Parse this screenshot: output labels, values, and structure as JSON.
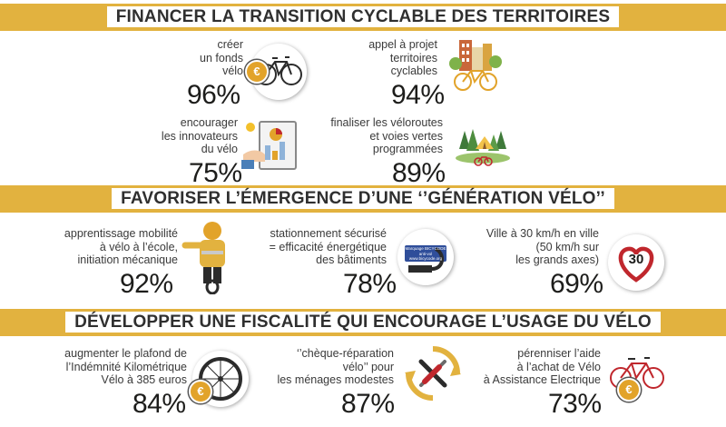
{
  "sections": [
    {
      "title": "FINANCER LA TRANSITION CYCLABLE DES TERRITOIRES",
      "items": [
        {
          "label": "créer\nun fonds\nvélo",
          "pct": "96%",
          "icon": "bicycle-euro-icon"
        },
        {
          "label": "appel à projet\nterritoires\ncyclables",
          "pct": "94%",
          "icon": "city-bicycle-icon"
        },
        {
          "label": "encourager\nles innovateurs\ndu vélo",
          "pct": "75%",
          "icon": "innovation-tablet-icon"
        },
        {
          "label": "finaliser les véloroutes\net voies vertes\nprogrammées",
          "pct": "89%",
          "icon": "greenway-tent-icon"
        }
      ]
    },
    {
      "title": "FAVORISER L’ÉMERGENCE D’UNE ‘’GÉNÉRATION VÉLO’’",
      "items": [
        {
          "label": "apprentissage mobilité\nà vélo à l’école,\ninitiation mécanique",
          "pct": "92%",
          "icon": "child-cyclist-icon"
        },
        {
          "label": "stationnement sécurisé\n= efficacité énergétique\ndes bâtiments",
          "pct": "78%",
          "icon": "bike-lock-icon"
        },
        {
          "label": "Ville à 30 km/h en ville\n(50 km/h sur\nles grands axes)",
          "pct": "69%",
          "icon": "speed-30-heart-icon"
        }
      ]
    },
    {
      "title": "DÉVELOPPER UNE FISCALITÉ QUI ENCOURAGE L’USAGE DU VÉLO",
      "items": [
        {
          "label": "augmenter le plafond de\nl’Indémnité Kilométrique\nVélo à 385 euros",
          "pct": "84%",
          "icon": "wheel-euro-icon"
        },
        {
          "label": "‘’chèque-réparation\nvélo’’ pour\nles ménages modestes",
          "pct": "87%",
          "icon": "repair-tools-icon"
        },
        {
          "label": "pérenniser l’aide\nà l’achat de Vélo\nà Assistance Electrique",
          "pct": "73%",
          "icon": "ebike-euro-icon"
        }
      ]
    }
  ],
  "badges": {
    "euro_symbol": "€",
    "speed_limit": "30",
    "lock_tag_line1": "Marquage BICYCODE",
    "lock_tag_line2": "anti-vol",
    "lock_tag_line3": "www.bicycode.org"
  },
  "colors": {
    "accent": "#e2b23f",
    "euro": "#e2a32a",
    "heart": "#c0272d",
    "text": "#1d1d1b"
  }
}
